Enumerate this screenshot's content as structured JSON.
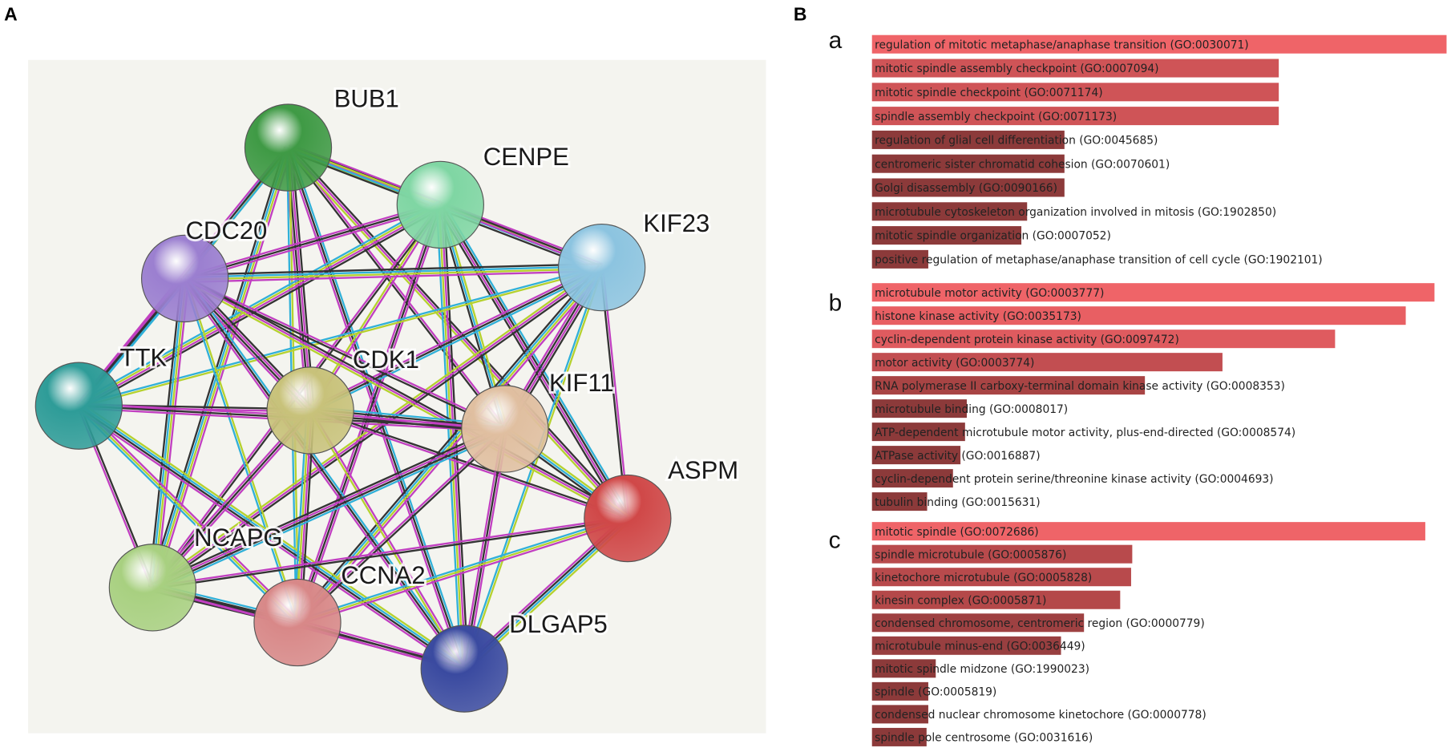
{
  "panel_a": {
    "label": "A",
    "nodes": [
      {
        "label": "BUB1",
        "color": "#3f9a45"
      },
      {
        "label": "CENPE",
        "color": "#7fd6a3"
      },
      {
        "label": "KIF23",
        "color": "#8cc4e0"
      },
      {
        "label": "CDC20",
        "color": "#9b7fd0"
      },
      {
        "label": "TTK",
        "color": "#2e9c98"
      },
      {
        "label": "CDK1",
        "color": "#c8c27a"
      },
      {
        "label": "KIF11",
        "color": "#e0bfa0"
      },
      {
        "label": "ASPM",
        "color": "#d04848"
      },
      {
        "label": "NCAPG",
        "color": "#a8d080"
      },
      {
        "label": "CCNA2",
        "color": "#d88888"
      },
      {
        "label": "DLGAP5",
        "color": "#3a4aa0"
      }
    ]
  },
  "panel_b_label": "B",
  "chart_data": [
    {
      "type": "bar",
      "label": "a",
      "xlim": [
        0,
        100
      ],
      "categories": [
        "regulation of mitotic metaphase/anaphase transition (GO:0030071)",
        "mitotic spindle assembly checkpoint (GO:0007094)",
        "mitotic spindle checkpoint (GO:0071174)",
        "spindle assembly checkpoint (GO:0071173)",
        "regulation of glial cell differentiation (GO:0045685)",
        "centromeric sister chromatid cohesion (GO:0070601)",
        "Golgi disassembly (GO:0090166)",
        "microtubule cytoskeleton organization involved in mitosis (GO:1902850)",
        "mitotic spindle organization (GO:0007052)",
        "positive regulation of metaphase/anaphase transition of cell cycle (GO:1902101)"
      ],
      "values": [
        100,
        70.8,
        70.8,
        70.8,
        33.5,
        33.5,
        33.5,
        27,
        26,
        9.8
      ],
      "colors": [
        "#ef6468",
        "#cf5457",
        "#cf5457",
        "#cf5457",
        "#8c3a3a",
        "#8c3a3a",
        "#8c3a3a",
        "#8c3a3a",
        "#8c3a3a",
        "#8c3a3a"
      ]
    },
    {
      "type": "bar",
      "label": "b",
      "xlim": [
        0,
        100
      ],
      "categories": [
        "microtubule motor activity (GO:0003777)",
        "histone kinase activity (GO:0035173)",
        "cyclin-dependent protein kinase activity (GO:0097472)",
        "motor activity (GO:0003774)",
        "RNA polymerase II carboxy-terminal domain kinase activity (GO:0008353)",
        "microtubule binding (GO:0008017)",
        "ATP-dependent microtubule motor activity, plus-end-directed (GO:0008574)",
        "ATPase activity (GO:0016887)",
        "cyclin-dependent protein serine/threonine kinase activity (GO:0004693)",
        "tubulin binding (GO:0015631)"
      ],
      "values": [
        97.9,
        92.9,
        80.6,
        61,
        47.5,
        16.5,
        16.2,
        15.4,
        14.1,
        9.6
      ],
      "colors": [
        "#ef6468",
        "#e85f63",
        "#df5b5f",
        "#c24e51",
        "#a84444",
        "#8c3a3a",
        "#8c3a3a",
        "#8c3a3a",
        "#8c3a3a",
        "#8c3a3a"
      ]
    },
    {
      "type": "bar",
      "label": "c",
      "xlim": [
        0,
        100
      ],
      "categories": [
        "mitotic spindle (GO:0072686)",
        "spindle microtubule (GO:0005876)",
        "kinetochore microtubule (GO:0005828)",
        "kinesin complex (GO:0005871)",
        "condensed chromosome, centromeric region (GO:0000779)",
        "microtubule minus-end (GO:0036449)",
        "mitotic spindle midzone (GO:1990023)",
        "spindle (GO:0005819)",
        "condensed nuclear chromosome kinetochore (GO:0000778)",
        "spindle pole centrosome (GO:0031616)"
      ],
      "values": [
        96.3,
        45.3,
        45.1,
        43.2,
        36.9,
        32.9,
        11.1,
        9.8,
        9.8,
        9.5
      ],
      "colors": [
        "#ef6468",
        "#b84a4c",
        "#b84a4c",
        "#b44849",
        "#9e4142",
        "#983f40",
        "#8c3a3a",
        "#8c3a3a",
        "#8c3a3a",
        "#8c3a3a"
      ]
    }
  ]
}
